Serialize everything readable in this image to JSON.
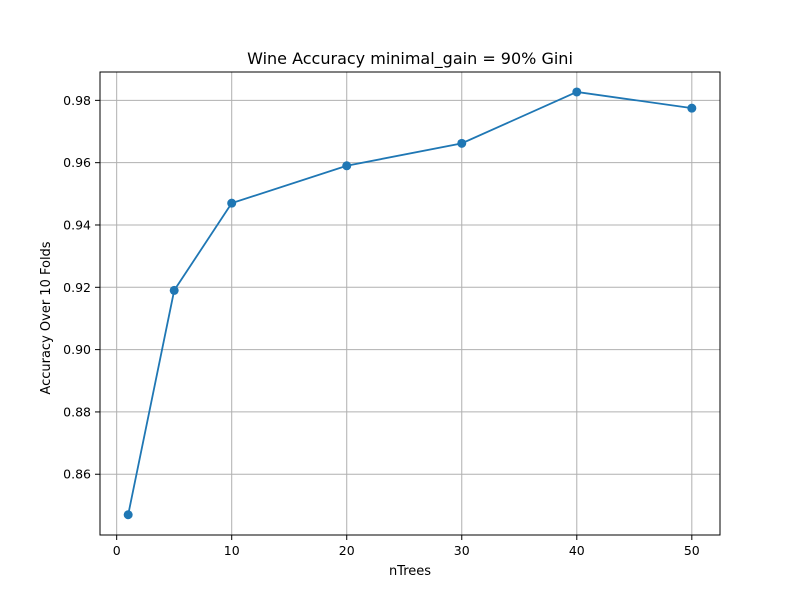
{
  "chart_data": {
    "type": "line",
    "title": "Wine Accuracy minimal_gain = 90% Gini",
    "xlabel": "nTrees",
    "ylabel": "Accuracy Over 10 Folds",
    "x": [
      1,
      5,
      10,
      20,
      30,
      40,
      50
    ],
    "series": [
      {
        "values": [
          0.847,
          0.919,
          0.947,
          0.959,
          0.9662,
          0.9827,
          0.9775
        ],
        "color": "#1f77b4",
        "marker": "circle"
      }
    ],
    "xlim": [
      -1.45,
      52.45
    ],
    "ylim": [
      0.8405,
      0.9891
    ],
    "xticks": [
      0,
      10,
      20,
      30,
      40,
      50
    ],
    "xtick_labels": [
      "0",
      "10",
      "20",
      "30",
      "40",
      "50"
    ],
    "yticks": [
      0.86,
      0.88,
      0.9,
      0.92,
      0.94,
      0.96,
      0.98
    ],
    "ytick_labels": [
      "0.86",
      "0.88",
      "0.90",
      "0.92",
      "0.94",
      "0.96",
      "0.98"
    ],
    "grid": true,
    "legend": "none"
  }
}
